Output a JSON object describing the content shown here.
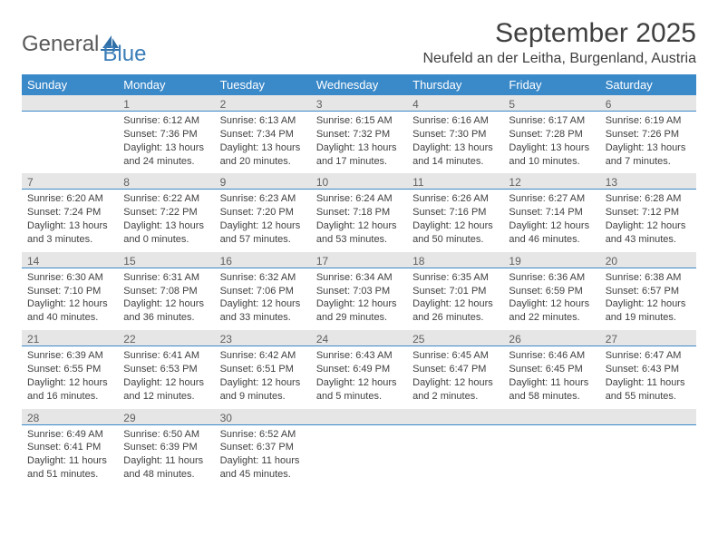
{
  "brand": {
    "part1": "General",
    "part2": "Blue"
  },
  "title": "September 2025",
  "location": "Neufeld an der Leitha, Burgenland, Austria",
  "colors": {
    "header_bg": "#3a89c9",
    "header_text": "#ffffff",
    "daynum_bg": "#e6e6e6",
    "daynum_border": "#3a89c9",
    "body_text": "#404040",
    "logo_blue": "#3a7db8"
  },
  "weekdays": [
    "Sunday",
    "Monday",
    "Tuesday",
    "Wednesday",
    "Thursday",
    "Friday",
    "Saturday"
  ],
  "weeks": [
    [
      {
        "day": "",
        "sunrise": "",
        "sunset": "",
        "daylight": ""
      },
      {
        "day": "1",
        "sunrise": "Sunrise: 6:12 AM",
        "sunset": "Sunset: 7:36 PM",
        "daylight": "Daylight: 13 hours and 24 minutes."
      },
      {
        "day": "2",
        "sunrise": "Sunrise: 6:13 AM",
        "sunset": "Sunset: 7:34 PM",
        "daylight": "Daylight: 13 hours and 20 minutes."
      },
      {
        "day": "3",
        "sunrise": "Sunrise: 6:15 AM",
        "sunset": "Sunset: 7:32 PM",
        "daylight": "Daylight: 13 hours and 17 minutes."
      },
      {
        "day": "4",
        "sunrise": "Sunrise: 6:16 AM",
        "sunset": "Sunset: 7:30 PM",
        "daylight": "Daylight: 13 hours and 14 minutes."
      },
      {
        "day": "5",
        "sunrise": "Sunrise: 6:17 AM",
        "sunset": "Sunset: 7:28 PM",
        "daylight": "Daylight: 13 hours and 10 minutes."
      },
      {
        "day": "6",
        "sunrise": "Sunrise: 6:19 AM",
        "sunset": "Sunset: 7:26 PM",
        "daylight": "Daylight: 13 hours and 7 minutes."
      }
    ],
    [
      {
        "day": "7",
        "sunrise": "Sunrise: 6:20 AM",
        "sunset": "Sunset: 7:24 PM",
        "daylight": "Daylight: 13 hours and 3 minutes."
      },
      {
        "day": "8",
        "sunrise": "Sunrise: 6:22 AM",
        "sunset": "Sunset: 7:22 PM",
        "daylight": "Daylight: 13 hours and 0 minutes."
      },
      {
        "day": "9",
        "sunrise": "Sunrise: 6:23 AM",
        "sunset": "Sunset: 7:20 PM",
        "daylight": "Daylight: 12 hours and 57 minutes."
      },
      {
        "day": "10",
        "sunrise": "Sunrise: 6:24 AM",
        "sunset": "Sunset: 7:18 PM",
        "daylight": "Daylight: 12 hours and 53 minutes."
      },
      {
        "day": "11",
        "sunrise": "Sunrise: 6:26 AM",
        "sunset": "Sunset: 7:16 PM",
        "daylight": "Daylight: 12 hours and 50 minutes."
      },
      {
        "day": "12",
        "sunrise": "Sunrise: 6:27 AM",
        "sunset": "Sunset: 7:14 PM",
        "daylight": "Daylight: 12 hours and 46 minutes."
      },
      {
        "day": "13",
        "sunrise": "Sunrise: 6:28 AM",
        "sunset": "Sunset: 7:12 PM",
        "daylight": "Daylight: 12 hours and 43 minutes."
      }
    ],
    [
      {
        "day": "14",
        "sunrise": "Sunrise: 6:30 AM",
        "sunset": "Sunset: 7:10 PM",
        "daylight": "Daylight: 12 hours and 40 minutes."
      },
      {
        "day": "15",
        "sunrise": "Sunrise: 6:31 AM",
        "sunset": "Sunset: 7:08 PM",
        "daylight": "Daylight: 12 hours and 36 minutes."
      },
      {
        "day": "16",
        "sunrise": "Sunrise: 6:32 AM",
        "sunset": "Sunset: 7:06 PM",
        "daylight": "Daylight: 12 hours and 33 minutes."
      },
      {
        "day": "17",
        "sunrise": "Sunrise: 6:34 AM",
        "sunset": "Sunset: 7:03 PM",
        "daylight": "Daylight: 12 hours and 29 minutes."
      },
      {
        "day": "18",
        "sunrise": "Sunrise: 6:35 AM",
        "sunset": "Sunset: 7:01 PM",
        "daylight": "Daylight: 12 hours and 26 minutes."
      },
      {
        "day": "19",
        "sunrise": "Sunrise: 6:36 AM",
        "sunset": "Sunset: 6:59 PM",
        "daylight": "Daylight: 12 hours and 22 minutes."
      },
      {
        "day": "20",
        "sunrise": "Sunrise: 6:38 AM",
        "sunset": "Sunset: 6:57 PM",
        "daylight": "Daylight: 12 hours and 19 minutes."
      }
    ],
    [
      {
        "day": "21",
        "sunrise": "Sunrise: 6:39 AM",
        "sunset": "Sunset: 6:55 PM",
        "daylight": "Daylight: 12 hours and 16 minutes."
      },
      {
        "day": "22",
        "sunrise": "Sunrise: 6:41 AM",
        "sunset": "Sunset: 6:53 PM",
        "daylight": "Daylight: 12 hours and 12 minutes."
      },
      {
        "day": "23",
        "sunrise": "Sunrise: 6:42 AM",
        "sunset": "Sunset: 6:51 PM",
        "daylight": "Daylight: 12 hours and 9 minutes."
      },
      {
        "day": "24",
        "sunrise": "Sunrise: 6:43 AM",
        "sunset": "Sunset: 6:49 PM",
        "daylight": "Daylight: 12 hours and 5 minutes."
      },
      {
        "day": "25",
        "sunrise": "Sunrise: 6:45 AM",
        "sunset": "Sunset: 6:47 PM",
        "daylight": "Daylight: 12 hours and 2 minutes."
      },
      {
        "day": "26",
        "sunrise": "Sunrise: 6:46 AM",
        "sunset": "Sunset: 6:45 PM",
        "daylight": "Daylight: 11 hours and 58 minutes."
      },
      {
        "day": "27",
        "sunrise": "Sunrise: 6:47 AM",
        "sunset": "Sunset: 6:43 PM",
        "daylight": "Daylight: 11 hours and 55 minutes."
      }
    ],
    [
      {
        "day": "28",
        "sunrise": "Sunrise: 6:49 AM",
        "sunset": "Sunset: 6:41 PM",
        "daylight": "Daylight: 11 hours and 51 minutes."
      },
      {
        "day": "29",
        "sunrise": "Sunrise: 6:50 AM",
        "sunset": "Sunset: 6:39 PM",
        "daylight": "Daylight: 11 hours and 48 minutes."
      },
      {
        "day": "30",
        "sunrise": "Sunrise: 6:52 AM",
        "sunset": "Sunset: 6:37 PM",
        "daylight": "Daylight: 11 hours and 45 minutes."
      },
      {
        "day": "",
        "sunrise": "",
        "sunset": "",
        "daylight": ""
      },
      {
        "day": "",
        "sunrise": "",
        "sunset": "",
        "daylight": ""
      },
      {
        "day": "",
        "sunrise": "",
        "sunset": "",
        "daylight": ""
      },
      {
        "day": "",
        "sunrise": "",
        "sunset": "",
        "daylight": ""
      }
    ]
  ]
}
